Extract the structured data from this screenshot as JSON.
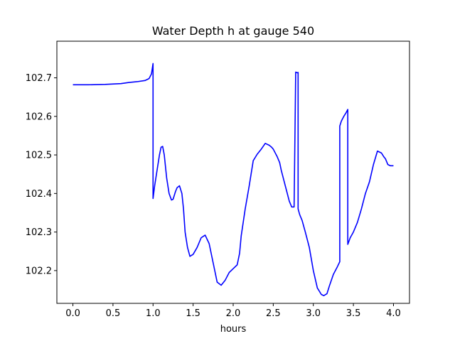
{
  "chart_data": {
    "type": "line",
    "title": "Water Depth h at gauge 540",
    "xlabel": "hours",
    "ylabel": "",
    "xlim": [
      -0.2,
      4.2
    ],
    "ylim": [
      102.115,
      102.795
    ],
    "xticks": [
      0.0,
      0.5,
      1.0,
      1.5,
      2.0,
      2.5,
      3.0,
      3.5,
      4.0
    ],
    "xtick_labels": [
      "0.0",
      "0.5",
      "1.0",
      "1.5",
      "2.0",
      "2.5",
      "3.0",
      "3.5",
      "4.0"
    ],
    "yticks": [
      102.2,
      102.3,
      102.4,
      102.5,
      102.6,
      102.7
    ],
    "ytick_labels": [
      "102.2",
      "102.3",
      "102.4",
      "102.5",
      "102.6",
      "102.7"
    ],
    "grid": false,
    "series": [
      {
        "color": "#0000ff",
        "x": [
          0.0,
          0.2,
          0.4,
          0.6,
          0.7,
          0.8,
          0.9,
          0.95,
          0.98,
          1.0,
          1.0,
          1.02,
          1.05,
          1.08,
          1.1,
          1.12,
          1.14,
          1.17,
          1.2,
          1.23,
          1.25,
          1.28,
          1.3,
          1.33,
          1.36,
          1.38,
          1.4,
          1.43,
          1.46,
          1.5,
          1.55,
          1.6,
          1.65,
          1.7,
          1.75,
          1.8,
          1.85,
          1.9,
          1.95,
          2.0,
          2.05,
          2.08,
          2.1,
          2.15,
          2.2,
          2.25,
          2.3,
          2.35,
          2.4,
          2.45,
          2.48,
          2.5,
          2.55,
          2.58,
          2.6,
          2.65,
          2.7,
          2.73,
          2.76,
          2.78,
          2.78,
          2.79,
          2.8,
          2.81,
          2.81,
          2.83,
          2.86,
          2.9,
          2.95,
          3.0,
          3.05,
          3.1,
          3.13,
          3.17,
          3.2,
          3.25,
          3.3,
          3.33,
          3.33,
          3.35,
          3.38,
          3.41,
          3.43,
          3.43,
          3.46,
          3.5,
          3.55,
          3.6,
          3.65,
          3.7,
          3.75,
          3.8,
          3.85,
          3.88,
          3.9,
          3.93,
          3.96,
          4.0
        ],
        "y": [
          102.682,
          102.682,
          102.683,
          102.685,
          102.688,
          102.69,
          102.693,
          102.698,
          102.71,
          102.737,
          102.387,
          102.42,
          102.46,
          102.5,
          102.52,
          102.522,
          102.5,
          102.44,
          102.4,
          102.383,
          102.385,
          102.405,
          102.415,
          102.42,
          102.4,
          102.36,
          102.3,
          102.26,
          102.237,
          102.242,
          102.26,
          102.285,
          102.292,
          102.27,
          102.22,
          102.17,
          102.162,
          102.175,
          102.195,
          102.205,
          102.215,
          102.245,
          102.29,
          102.36,
          102.42,
          102.485,
          102.502,
          102.515,
          102.53,
          102.525,
          102.52,
          102.515,
          102.495,
          102.48,
          102.46,
          102.42,
          102.38,
          102.365,
          102.365,
          102.715,
          102.715,
          102.714,
          102.713,
          102.714,
          102.36,
          102.345,
          102.33,
          102.3,
          102.26,
          102.2,
          102.155,
          102.138,
          102.135,
          102.14,
          102.16,
          102.19,
          102.21,
          102.223,
          102.575,
          102.588,
          102.6,
          102.61,
          102.618,
          102.268,
          102.285,
          102.3,
          102.325,
          102.36,
          102.4,
          102.43,
          102.475,
          102.51,
          102.505,
          102.495,
          102.49,
          102.475,
          102.472,
          102.472
        ]
      }
    ]
  }
}
